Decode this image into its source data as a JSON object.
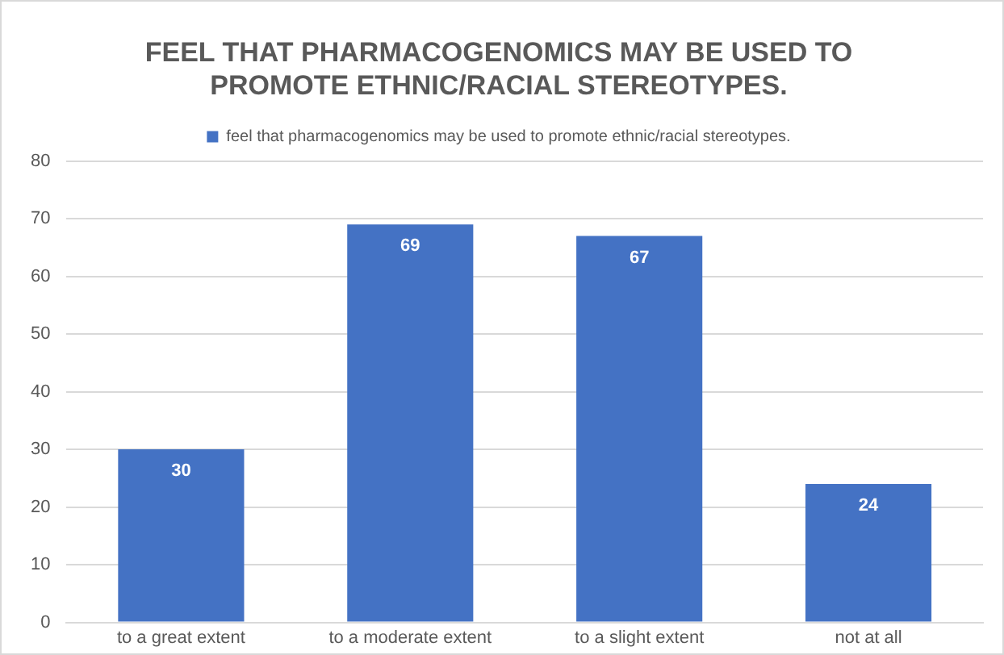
{
  "chart_data": {
    "type": "bar",
    "title": "FEEL THAT PHARMACOGENOMICS MAY BE USED TO PROMOTE ETHNIC/RACIAL STEREOTYPES.",
    "categories": [
      "to a great extent",
      "to a moderate extent",
      "to a slight extent",
      "not at all"
    ],
    "series": [
      {
        "name": "feel that pharmacogenomics may be used to promote ethnic/racial stereotypes.",
        "color": "#4472c4",
        "values": [
          30,
          69,
          67,
          24
        ]
      }
    ],
    "ylim": [
      0,
      80
    ],
    "yticks": [
      0,
      10,
      20,
      30,
      40,
      50,
      60,
      70,
      80
    ],
    "grid": "y",
    "legend": "top",
    "data_labels": true
  }
}
